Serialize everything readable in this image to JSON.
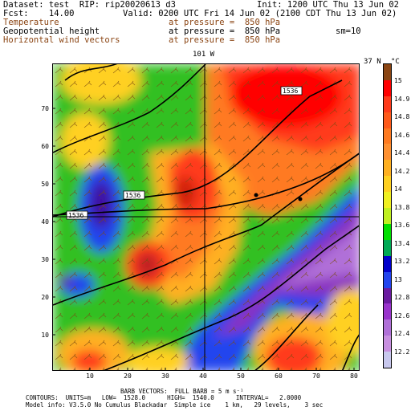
{
  "header": {
    "dataset": "Dataset: test  RIP: rip20020613 d3",
    "init": "Init: 1200 UTC Thu 13 Jun 02",
    "fcst": "Fcst:    14.00",
    "valid": "Valid: 0200 UTC Fri 14 Jun 02 (2100 CDT Thu 13 Jun 02)",
    "field1_name": "Temperature",
    "field1_level": "at pressure =  850 hPa",
    "field2_name": "Geopotential height",
    "field2_level": "at pressure =  850 hPa",
    "field2_extra": "sm=10",
    "field3_name": "Horizontal wind vectors",
    "field3_level": "at pressure =  850 hPa"
  },
  "map": {
    "lon_label": "101 W",
    "lat_label": "37 N",
    "x_ticks": [
      "10",
      "20",
      "30",
      "40",
      "50",
      "60",
      "70",
      "80"
    ],
    "y_ticks": [
      "10",
      "20",
      "30",
      "40",
      "50",
      "60",
      "70"
    ],
    "contour_labels": [
      "1536",
      "1536",
      "1536"
    ]
  },
  "colorbar": {
    "unit": "°C",
    "labels": [
      "15",
      "14.9",
      "14.8",
      "14.6",
      "14.4",
      "14.2",
      "14",
      "13.8",
      "13.6",
      "13.4",
      "13.2",
      "13",
      "12.8",
      "12.6",
      "12.4",
      "12.2"
    ],
    "colors": [
      "#8b4513",
      "#ff0000",
      "#ff3a1a",
      "#ff5a1a",
      "#ff7a20",
      "#ff9030",
      "#ffb020",
      "#ffd020",
      "#f0f020",
      "#c0f020",
      "#00e000",
      "#00aa55",
      "#0000cc",
      "#2244ee",
      "#6a1aa0",
      "#9933cc",
      "#b070d8",
      "#c88fe0",
      "#c8c8ee"
    ]
  },
  "footer": {
    "barb_line": "BARB VECTORS:  FULL BARB = 5 m s⁻¹",
    "contour_line": "CONTOURS:  UNITS=m   LOW=  1528.0      HIGH=  1540.0      INTERVAL=   2.0000",
    "model_line": "Model info: V3.5.0 No Cumulus Blackadar  Simple ice    1 km,   29 levels,    3 sec"
  }
}
